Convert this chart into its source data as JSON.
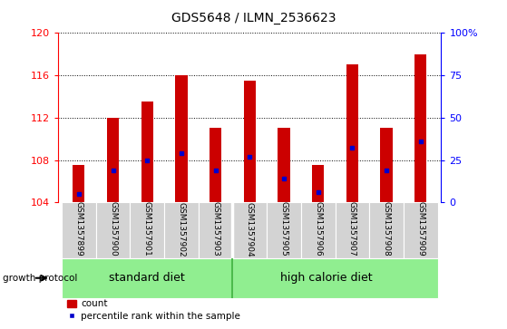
{
  "title": "GDS5648 / ILMN_2536623",
  "samples": [
    "GSM1357899",
    "GSM1357900",
    "GSM1357901",
    "GSM1357902",
    "GSM1357903",
    "GSM1357904",
    "GSM1357905",
    "GSM1357906",
    "GSM1357907",
    "GSM1357908",
    "GSM1357909"
  ],
  "count_values": [
    107.5,
    112.0,
    113.5,
    116.0,
    111.0,
    115.5,
    111.0,
    107.5,
    117.0,
    111.0,
    118.0
  ],
  "percentile_values": [
    5,
    19,
    25,
    29,
    19,
    27,
    14,
    6,
    32,
    19,
    36
  ],
  "base": 104,
  "ylim_left": [
    104,
    120
  ],
  "ylim_right": [
    0,
    100
  ],
  "yticks_left": [
    104,
    108,
    112,
    116,
    120
  ],
  "yticks_right": [
    0,
    25,
    50,
    75,
    100
  ],
  "yticklabels_right": [
    "0",
    "25",
    "50",
    "75",
    "100%"
  ],
  "bar_color": "#cc0000",
  "dot_color": "#0000cc",
  "group_label_standard": "standard diet",
  "group_label_high": "high calorie diet",
  "growth_protocol_label": "growth protocol",
  "legend_count_label": "count",
  "legend_percentile_label": "percentile rank within the sample",
  "bar_width": 0.35,
  "tick_fontsize": 8,
  "title_fontsize": 10,
  "group_box_color": "#90ee90",
  "sample_box_color": "#d3d3d3",
  "n_standard": 5,
  "n_high": 6
}
